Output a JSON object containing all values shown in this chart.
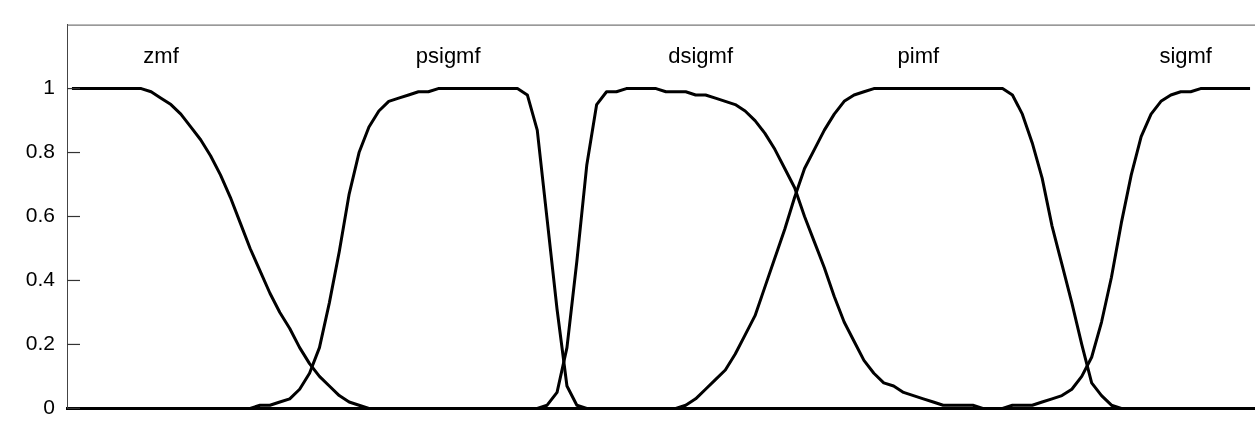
{
  "chart_data": {
    "type": "line",
    "categories": [
      null,
      null,
      null,
      null,
      null,
      null,
      null,
      null,
      null,
      null,
      null,
      null,
      null,
      null,
      null,
      null,
      null,
      null,
      null,
      null,
      null,
      null,
      null,
      null,
      null,
      null,
      null,
      null,
      null,
      null,
      null,
      null,
      null,
      null,
      null,
      null,
      null,
      null,
      null,
      null,
      null,
      null,
      null,
      null,
      null,
      null,
      null,
      null,
      null,
      null,
      null,
      null,
      null,
      null,
      null,
      null,
      null,
      null,
      null,
      null,
      null,
      null,
      null,
      null,
      null,
      null,
      null,
      null,
      null,
      null,
      null,
      null,
      null,
      null,
      null,
      null,
      null,
      null,
      null,
      null,
      null,
      null,
      null,
      null,
      null,
      null,
      null,
      null,
      null,
      null,
      null,
      null,
      null,
      null,
      null,
      null,
      null,
      null,
      null,
      null,
      null,
      null,
      null,
      null,
      null,
      null,
      null,
      null,
      null,
      null,
      null,
      null,
      null,
      null,
      null,
      null,
      null,
      null,
      null,
      null
    ],
    "series": [
      {
        "name": "zmf",
        "color": "#000000",
        "values": [
          1,
          1,
          1,
          1,
          1,
          1,
          1,
          1,
          0.99,
          0.97,
          0.95,
          0.92,
          0.88,
          0.84,
          0.79,
          0.73,
          0.66,
          0.58,
          0.5,
          0.43,
          0.36,
          0.3,
          0.25,
          0.19,
          0.14,
          0.1,
          0.07,
          0.04,
          0.02,
          0.01,
          0,
          null,
          null,
          null,
          null,
          null,
          null,
          null,
          null,
          null,
          null,
          null,
          null,
          null,
          null,
          null,
          null,
          null,
          null,
          null,
          null,
          null,
          null,
          null,
          null,
          null,
          null,
          null,
          null,
          null,
          null,
          null,
          null,
          null,
          null,
          null,
          null,
          null,
          null,
          null,
          null,
          null,
          null,
          null,
          null,
          null,
          null,
          null,
          null,
          null,
          null,
          null,
          null,
          null,
          null,
          null,
          null,
          null,
          null,
          null,
          null,
          null,
          null,
          null,
          null,
          null,
          null,
          null,
          null,
          null,
          null,
          null,
          null,
          null,
          null,
          null,
          null,
          null,
          null,
          null,
          null,
          null,
          null,
          null,
          null,
          null,
          null,
          null,
          null,
          null
        ]
      },
      {
        "name": "psigmf",
        "color": "#000000",
        "values": [
          null,
          null,
          null,
          null,
          null,
          null,
          null,
          null,
          null,
          null,
          null,
          null,
          null,
          null,
          null,
          null,
          null,
          null,
          0,
          0.01,
          0.01,
          0.02,
          0.03,
          0.06,
          0.11,
          0.19,
          0.33,
          0.49,
          0.67,
          0.8,
          0.88,
          0.93,
          0.96,
          0.97,
          0.98,
          0.99,
          0.99,
          1,
          1,
          1,
          1,
          1,
          1,
          1,
          1,
          1,
          0.98,
          0.87,
          0.59,
          0.31,
          0.07,
          0.01,
          0,
          null,
          null,
          null,
          null,
          null,
          null,
          null,
          null,
          null,
          null,
          null,
          null,
          null,
          null,
          null,
          null,
          null,
          null,
          null,
          null,
          null,
          null,
          null,
          null,
          null,
          null,
          null,
          null,
          null,
          null,
          null,
          null,
          null,
          null,
          null,
          null,
          null,
          null,
          null,
          null,
          null,
          null,
          null,
          null,
          null,
          null,
          null,
          null,
          null,
          null,
          null,
          null,
          null,
          null,
          null,
          null,
          null,
          null,
          null,
          null,
          null,
          null,
          null,
          null,
          null,
          null,
          null
        ]
      },
      {
        "name": "dsigmf",
        "color": "#000000",
        "values": [
          null,
          null,
          null,
          null,
          null,
          null,
          null,
          null,
          null,
          null,
          null,
          null,
          null,
          null,
          null,
          null,
          null,
          null,
          null,
          null,
          null,
          null,
          null,
          null,
          null,
          null,
          null,
          null,
          null,
          null,
          null,
          null,
          null,
          null,
          null,
          null,
          null,
          null,
          null,
          null,
          null,
          null,
          null,
          null,
          null,
          null,
          null,
          0,
          0.01,
          0.05,
          0.19,
          0.46,
          0.76,
          0.95,
          0.99,
          0.99,
          1,
          1,
          1,
          1,
          0.99,
          0.99,
          0.99,
          0.98,
          0.98,
          0.97,
          0.96,
          0.95,
          0.93,
          0.9,
          0.86,
          0.81,
          0.75,
          0.69,
          0.6,
          0.52,
          0.44,
          0.35,
          0.27,
          0.21,
          0.15,
          0.11,
          0.08,
          0.07,
          0.05,
          0.04,
          0.03,
          0.02,
          0.01,
          0.01,
          0.01,
          0.01,
          0,
          null,
          null,
          null,
          null,
          null,
          null,
          null,
          null,
          null,
          null,
          null,
          null,
          null,
          null,
          null,
          null,
          null,
          null,
          null,
          null,
          null,
          null,
          null,
          null,
          null,
          null,
          null
        ]
      },
      {
        "name": "pimf",
        "color": "#000000",
        "values": [
          null,
          null,
          null,
          null,
          null,
          null,
          null,
          null,
          null,
          null,
          null,
          null,
          null,
          null,
          null,
          null,
          null,
          null,
          null,
          null,
          null,
          null,
          null,
          null,
          null,
          null,
          null,
          null,
          null,
          null,
          null,
          null,
          null,
          null,
          null,
          null,
          null,
          null,
          null,
          null,
          null,
          null,
          null,
          null,
          null,
          null,
          null,
          null,
          null,
          null,
          null,
          null,
          null,
          null,
          null,
          null,
          null,
          null,
          null,
          null,
          null,
          0,
          0.01,
          0.03,
          0.06,
          0.09,
          0.12,
          0.17,
          0.23,
          0.29,
          0.38,
          0.47,
          0.56,
          0.66,
          0.75,
          0.81,
          0.87,
          0.92,
          0.96,
          0.98,
          0.99,
          1,
          1,
          1,
          1,
          1,
          1,
          1,
          1,
          1,
          1,
          1,
          1,
          1,
          1,
          0.98,
          0.92,
          0.83,
          0.72,
          0.57,
          0.45,
          0.33,
          0.2,
          0.08,
          0.04,
          0.01,
          0,
          null,
          null,
          null,
          null,
          null,
          null,
          null,
          null,
          null,
          null,
          null,
          null,
          null
        ]
      },
      {
        "name": "sigmf",
        "color": "#000000",
        "values": [
          null,
          null,
          null,
          null,
          null,
          null,
          null,
          null,
          null,
          null,
          null,
          null,
          null,
          null,
          null,
          null,
          null,
          null,
          null,
          null,
          null,
          null,
          null,
          null,
          null,
          null,
          null,
          null,
          null,
          null,
          null,
          null,
          null,
          null,
          null,
          null,
          null,
          null,
          null,
          null,
          null,
          null,
          null,
          null,
          null,
          null,
          null,
          null,
          null,
          null,
          null,
          null,
          null,
          null,
          null,
          null,
          null,
          null,
          null,
          null,
          null,
          null,
          null,
          null,
          null,
          null,
          null,
          null,
          null,
          null,
          null,
          null,
          null,
          null,
          null,
          null,
          null,
          null,
          null,
          null,
          null,
          null,
          null,
          null,
          null,
          null,
          null,
          null,
          null,
          null,
          null,
          null,
          null,
          null,
          0,
          0.01,
          0.01,
          0.01,
          0.02,
          0.03,
          0.04,
          0.06,
          0.1,
          0.16,
          0.27,
          0.41,
          0.58,
          0.73,
          0.85,
          0.92,
          0.96,
          0.98,
          0.99,
          0.99,
          1,
          1,
          1,
          1,
          1,
          1
        ]
      }
    ],
    "ylim": [
      0,
      1.2
    ],
    "yticks": [
      0,
      0.2,
      0.4,
      0.6,
      0.8,
      1
    ],
    "tick_labels": "y"
  }
}
